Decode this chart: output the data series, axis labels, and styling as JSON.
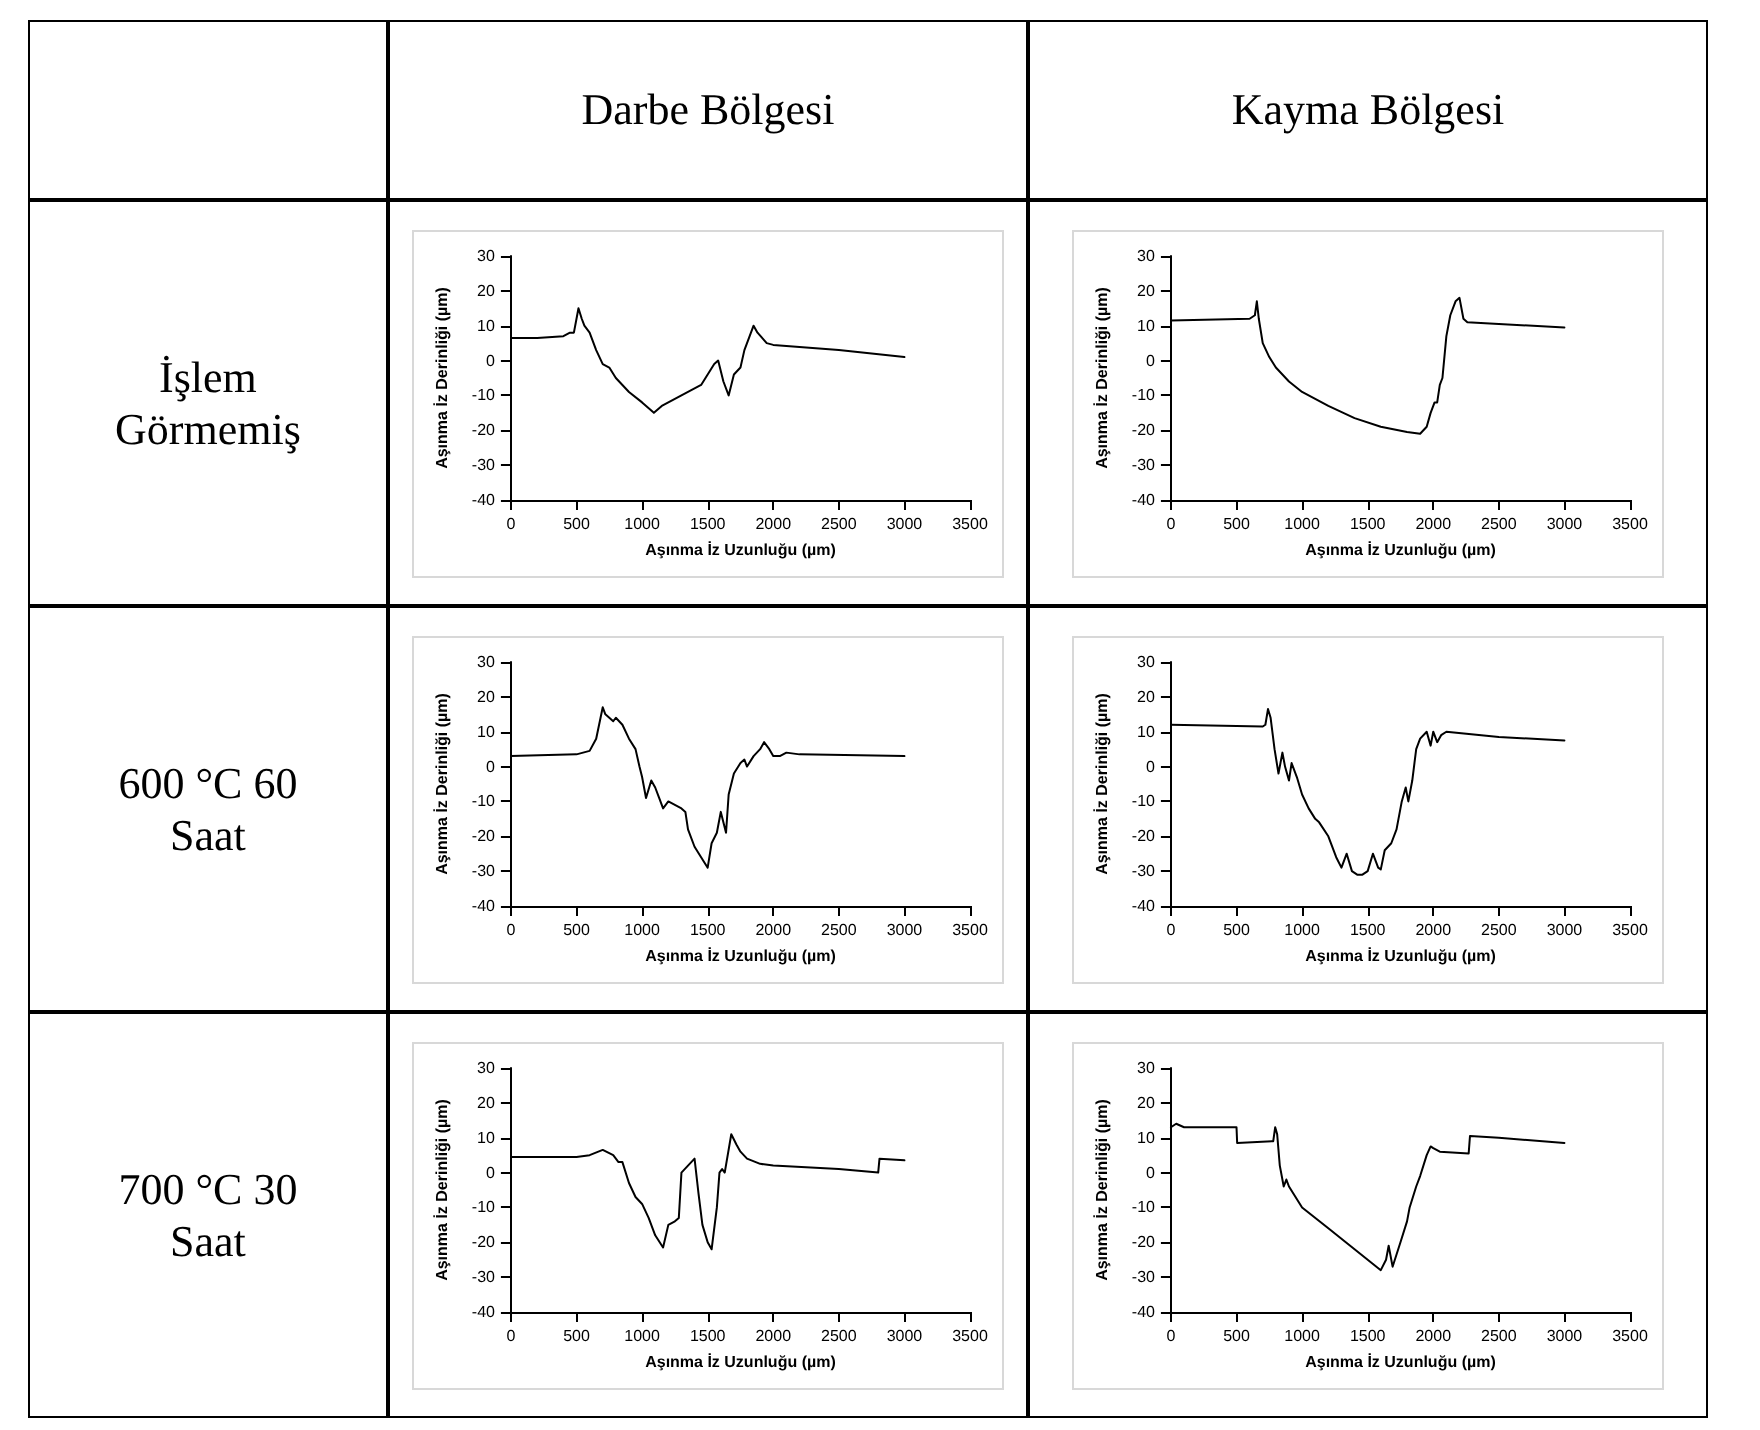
{
  "chart_data": [
    {
      "type": "line",
      "title": "Darbe Bölgesi",
      "annotations": [
        "İşlem Görmemiş"
      ],
      "xlabel": "Aşınma İz Uzunluğu (µm)",
      "ylabel": "Aşınma İz Derinliği (µm)",
      "xlim": [
        0,
        3500
      ],
      "xticks": [
        0,
        500,
        1000,
        1500,
        2000,
        2500,
        3000,
        3500
      ],
      "ylim": [
        -40,
        30
      ],
      "yticks": [
        -40,
        -30,
        -20,
        -10,
        0,
        10,
        20,
        30
      ],
      "grid": false,
      "marker": "none",
      "line_style": "solid",
      "series": [
        {
          "color": "#000000",
          "x": [
            0,
            200,
            400,
            450,
            480,
            500,
            515,
            540,
            560,
            600,
            650,
            700,
            750,
            800,
            900,
            1000,
            1090,
            1150,
            1200,
            1300,
            1350,
            1400,
            1450,
            1500,
            1550,
            1580,
            1620,
            1660,
            1700,
            1750,
            1780,
            1820,
            1850,
            1880,
            1950,
            2000,
            2500,
            3000
          ],
          "values": [
            6.5,
            6.5,
            7,
            8,
            8,
            12,
            15,
            12,
            10,
            8,
            3,
            -1,
            -2,
            -5,
            -9,
            -12,
            -15,
            -13,
            -12,
            -10,
            -9,
            -8,
            -7,
            -4,
            -1,
            0,
            -6,
            -10,
            -4,
            -2,
            3,
            7,
            10,
            8,
            5,
            4.5,
            3,
            1
          ]
        }
      ]
    },
    {
      "type": "line",
      "title": "Kayma Bölgesi",
      "xlabel": "Aşınma İz Uzunluğu (µm)",
      "ylabel": "Aşınma İz Derinliği (µm)",
      "xlim": [
        0,
        3500
      ],
      "xticks": [
        0,
        500,
        1000,
        1500,
        2000,
        2500,
        3000,
        3500
      ],
      "ylim": [
        -40,
        30
      ],
      "yticks": [
        -40,
        -30,
        -20,
        -10,
        0,
        10,
        20,
        30
      ],
      "grid": false,
      "marker": "none",
      "line_style": "solid",
      "series": [
        {
          "color": "#000000",
          "x": [
            0,
            600,
            640,
            655,
            670,
            700,
            750,
            800,
            900,
            1000,
            1200,
            1400,
            1600,
            1800,
            1900,
            1950,
            1980,
            2010,
            2030,
            2050,
            2070,
            2100,
            2130,
            2170,
            2200,
            2230,
            2260,
            2500,
            3000
          ],
          "values": [
            11.5,
            12,
            13,
            17,
            12,
            5,
            1,
            -2,
            -6,
            -9,
            -13,
            -16.5,
            -19,
            -20.5,
            -21,
            -19,
            -15,
            -12,
            -12,
            -7,
            -5,
            7,
            13,
            17,
            18,
            12,
            11,
            10.5,
            9.5
          ]
        }
      ]
    },
    {
      "type": "line",
      "annotations": [
        "600 °C 60 Saat"
      ],
      "xlabel": "Aşınma İz Uzunluğu (µm)",
      "ylabel": "Aşınma İz Derinliği (µm)",
      "xlim": [
        0,
        3500
      ],
      "xticks": [
        0,
        500,
        1000,
        1500,
        2000,
        2500,
        3000,
        3500
      ],
      "ylim": [
        -40,
        30
      ],
      "yticks": [
        -40,
        -30,
        -20,
        -10,
        0,
        10,
        20,
        30
      ],
      "grid": false,
      "marker": "none",
      "line_style": "solid",
      "series": [
        {
          "color": "#000000",
          "x": [
            0,
            500,
            600,
            650,
            700,
            720,
            780,
            800,
            850,
            900,
            950,
            980,
            1000,
            1030,
            1070,
            1100,
            1130,
            1160,
            1200,
            1300,
            1330,
            1350,
            1400,
            1450,
            1500,
            1530,
            1570,
            1600,
            1640,
            1660,
            1700,
            1750,
            1780,
            1800,
            1850,
            1900,
            1930,
            1970,
            2000,
            2050,
            2100,
            2200,
            3000
          ],
          "values": [
            3,
            3.5,
            4.5,
            8,
            17,
            15,
            13,
            14,
            12,
            8,
            5,
            0,
            -3,
            -9,
            -4,
            -6,
            -9,
            -12,
            -10,
            -12,
            -13,
            -18,
            -23,
            -26,
            -29,
            -22,
            -19,
            -13,
            -19,
            -8,
            -2,
            1,
            2,
            0,
            3,
            5,
            7,
            5,
            3,
            3,
            4,
            3.5,
            3
          ]
        }
      ]
    },
    {
      "type": "line",
      "xlabel": "Aşınma İz Uzunluğu (µm)",
      "ylabel": "Aşınma İz Derinliği (µm)",
      "xlim": [
        0,
        3500
      ],
      "xticks": [
        0,
        500,
        1000,
        1500,
        2000,
        2500,
        3000,
        3500
      ],
      "ylim": [
        -40,
        30
      ],
      "yticks": [
        -40,
        -30,
        -20,
        -10,
        0,
        10,
        20,
        30
      ],
      "grid": false,
      "marker": "none",
      "line_style": "solid",
      "series": [
        {
          "color": "#000000",
          "x": [
            0,
            700,
            720,
            740,
            760,
            790,
            820,
            850,
            870,
            900,
            920,
            960,
            1000,
            1050,
            1100,
            1130,
            1200,
            1260,
            1300,
            1340,
            1380,
            1420,
            1460,
            1500,
            1540,
            1580,
            1600,
            1630,
            1680,
            1720,
            1760,
            1790,
            1810,
            1840,
            1870,
            1900,
            1950,
            1980,
            2000,
            2030,
            2060,
            2100,
            2500,
            3000
          ],
          "values": [
            12,
            11.5,
            12,
            16.5,
            14,
            5,
            -2,
            4,
            0,
            -4,
            1,
            -3,
            -8,
            -12,
            -15,
            -16,
            -20,
            -26,
            -29,
            -25,
            -30,
            -31,
            -31,
            -30,
            -25,
            -29,
            -29.5,
            -24,
            -22,
            -18,
            -10,
            -6,
            -10,
            -4,
            5,
            8,
            10,
            6,
            10,
            7,
            9,
            10,
            8.5,
            7.5
          ]
        }
      ]
    },
    {
      "type": "line",
      "annotations": [
        "700 °C 30 Saat"
      ],
      "xlabel": "Aşınma İz Uzunluğu (µm)",
      "ylabel": "Aşınma İz Derinliği (µm)",
      "xlim": [
        0,
        3500
      ],
      "xticks": [
        0,
        500,
        1000,
        1500,
        2000,
        2500,
        3000,
        3500
      ],
      "ylim": [
        -40,
        30
      ],
      "yticks": [
        -40,
        -30,
        -20,
        -10,
        0,
        10,
        20,
        30
      ],
      "grid": false,
      "marker": "none",
      "line_style": "solid",
      "series": [
        {
          "color": "#000000",
          "x": [
            0,
            500,
            600,
            700,
            780,
            820,
            850,
            900,
            950,
            1000,
            1050,
            1100,
            1160,
            1200,
            1250,
            1280,
            1300,
            1350,
            1400,
            1430,
            1460,
            1500,
            1530,
            1570,
            1590,
            1610,
            1630,
            1680,
            1720,
            1750,
            1800,
            1900,
            2000,
            2500,
            2800,
            2810,
            3000
          ],
          "values": [
            4.5,
            4.5,
            5,
            6.5,
            5,
            3,
            3,
            -3,
            -7,
            -9,
            -13,
            -18,
            -21.5,
            -15,
            -14,
            -13,
            0,
            2,
            4,
            -6,
            -15,
            -20,
            -22,
            -10,
            0,
            1,
            0,
            11,
            8,
            6,
            4,
            2.5,
            2,
            1,
            0,
            4,
            3.5
          ]
        }
      ]
    },
    {
      "type": "line",
      "xlabel": "Aşınma İz Uzunluğu (µm)",
      "ylabel": "Aşınma İz Derinliği (µm)",
      "xlim": [
        0,
        3500
      ],
      "xticks": [
        0,
        500,
        1000,
        1500,
        2000,
        2500,
        3000,
        3500
      ],
      "ylim": [
        -40,
        30
      ],
      "yticks": [
        -40,
        -30,
        -20,
        -10,
        0,
        10,
        20,
        30
      ],
      "grid": false,
      "marker": "none",
      "line_style": "solid",
      "series": [
        {
          "color": "#000000",
          "x": [
            0,
            40,
            100,
            500,
            505,
            780,
            795,
            810,
            830,
            860,
            880,
            900,
            1000,
            1200,
            1400,
            1600,
            1640,
            1660,
            1690,
            1750,
            1800,
            1820,
            1870,
            1900,
            1950,
            1980,
            2000,
            2050,
            2270,
            2280,
            2500,
            3000
          ],
          "values": [
            13,
            14,
            13,
            13,
            8.5,
            9,
            13,
            11,
            2,
            -4,
            -2,
            -4,
            -10,
            -16,
            -22,
            -28,
            -25,
            -21,
            -27,
            -20,
            -14,
            -10,
            -4,
            -1,
            5,
            7.5,
            7,
            6,
            5.5,
            10.5,
            10,
            8.5
          ]
        }
      ]
    }
  ]
}
